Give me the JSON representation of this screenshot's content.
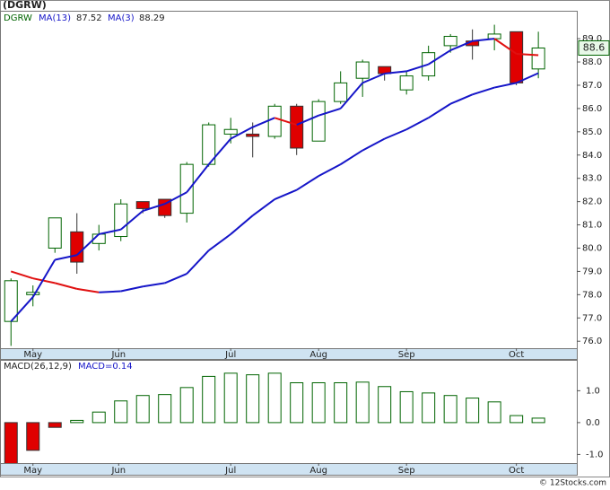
{
  "chart_data": [
    {
      "type": "candlestick",
      "title": "(DGRW)",
      "ticker": "DGRW",
      "categories": [
        null,
        null,
        null,
        null,
        null,
        null,
        null,
        null,
        null,
        null,
        null,
        null,
        null,
        null,
        null,
        null,
        null,
        null,
        null,
        null,
        null,
        null,
        null,
        null,
        null
      ],
      "open": [
        76.85,
        78.0,
        80.0,
        80.7,
        80.2,
        80.5,
        82.0,
        82.1,
        81.5,
        83.6,
        84.9,
        84.9,
        84.8,
        86.1,
        84.6,
        86.3,
        87.3,
        87.8,
        86.8,
        87.4,
        88.7,
        88.9,
        89.0,
        89.3,
        87.7
      ],
      "high": [
        78.7,
        78.4,
        81.3,
        81.5,
        81.0,
        82.1,
        82.0,
        82.1,
        83.7,
        85.4,
        85.6,
        85.4,
        86.2,
        86.2,
        86.4,
        87.6,
        88.1,
        87.8,
        87.6,
        88.7,
        89.2,
        89.4,
        89.6,
        89.3,
        89.3
      ],
      "low": [
        75.8,
        77.5,
        79.8,
        78.9,
        79.9,
        80.3,
        81.5,
        81.3,
        81.1,
        83.5,
        84.5,
        83.9,
        84.7,
        84.0,
        84.6,
        86.2,
        86.5,
        87.2,
        86.6,
        87.2,
        88.4,
        88.1,
        88.5,
        87.0,
        87.3
      ],
      "close": [
        78.6,
        78.1,
        81.3,
        79.4,
        80.6,
        81.9,
        81.7,
        81.4,
        83.6,
        85.3,
        85.1,
        84.8,
        86.1,
        84.3,
        86.3,
        87.1,
        88.0,
        87.5,
        87.4,
        88.4,
        89.1,
        88.7,
        89.2,
        87.1,
        88.6
      ],
      "up_color": "#006400",
      "down_color": "#e00000",
      "series": [
        {
          "name": "MA(13)",
          "color": "#1515c8",
          "down_color": "#e01010",
          "values": [
            79.0,
            78.7,
            78.5,
            78.25,
            78.1,
            78.15,
            78.35,
            78.5,
            78.9,
            79.9,
            80.6,
            81.4,
            82.1,
            82.5,
            83.1,
            83.6,
            84.2,
            84.7,
            85.1,
            85.6,
            86.2,
            86.6,
            86.9,
            87.1,
            87.52
          ]
        },
        {
          "name": "MA(3)",
          "color": "#1515c8",
          "down_color": "#e01010",
          "values": [
            76.85,
            77.9,
            79.5,
            79.7,
            80.6,
            80.8,
            81.6,
            81.9,
            82.4,
            83.6,
            84.7,
            85.2,
            85.6,
            85.3,
            85.7,
            86.0,
            87.1,
            87.5,
            87.6,
            87.9,
            88.5,
            88.9,
            89.0,
            88.35,
            88.29
          ]
        }
      ],
      "xlim": [
        -0.5,
        25.75
      ],
      "xticks": [
        {
          "value": 1,
          "label": "May"
        },
        {
          "value": 4.9,
          "label": "Jun"
        },
        {
          "value": 10,
          "label": "Jul"
        },
        {
          "value": 14,
          "label": "Aug"
        },
        {
          "value": 18,
          "label": "Sep"
        },
        {
          "value": 23,
          "label": "Oct"
        }
      ],
      "ylim": [
        75.7,
        90.2
      ],
      "yticks": [
        {
          "value": 76,
          "label": "76.0"
        },
        {
          "value": 77,
          "label": "77.0"
        },
        {
          "value": 78,
          "label": "78.0"
        },
        {
          "value": 79,
          "label": "79.0"
        },
        {
          "value": 80,
          "label": "80.0"
        },
        {
          "value": 81,
          "label": "81.0"
        },
        {
          "value": 82,
          "label": "82.0"
        },
        {
          "value": 83,
          "label": "83.0"
        },
        {
          "value": 84,
          "label": "84.0"
        },
        {
          "value": 85,
          "label": "85.0"
        },
        {
          "value": 86,
          "label": "86.0"
        },
        {
          "value": 87,
          "label": "87.0"
        },
        {
          "value": 88,
          "label": "88.0"
        },
        {
          "value": 89,
          "label": "89.0"
        }
      ]
    },
    {
      "type": "bar",
      "title": "MACD(26,12,9)",
      "subtitle": "MACD=0.14",
      "values": [
        -1.3,
        -0.87,
        -0.15,
        0.07,
        0.33,
        0.68,
        0.85,
        0.88,
        1.1,
        1.45,
        1.55,
        1.5,
        1.55,
        1.25,
        1.25,
        1.25,
        1.27,
        1.13,
        0.97,
        0.93,
        0.85,
        0.77,
        0.65,
        0.22,
        0.14
      ],
      "color": "#006400",
      "negative_color": "#e00000",
      "ylim": [
        -1.27,
        1.94
      ],
      "yticks": [
        {
          "value": 1,
          "label": "1.0"
        },
        {
          "value": 0,
          "label": "0.0"
        },
        {
          "value": -1,
          "label": "-1.0"
        }
      ]
    }
  ],
  "footer": "© 12Stocks.com"
}
